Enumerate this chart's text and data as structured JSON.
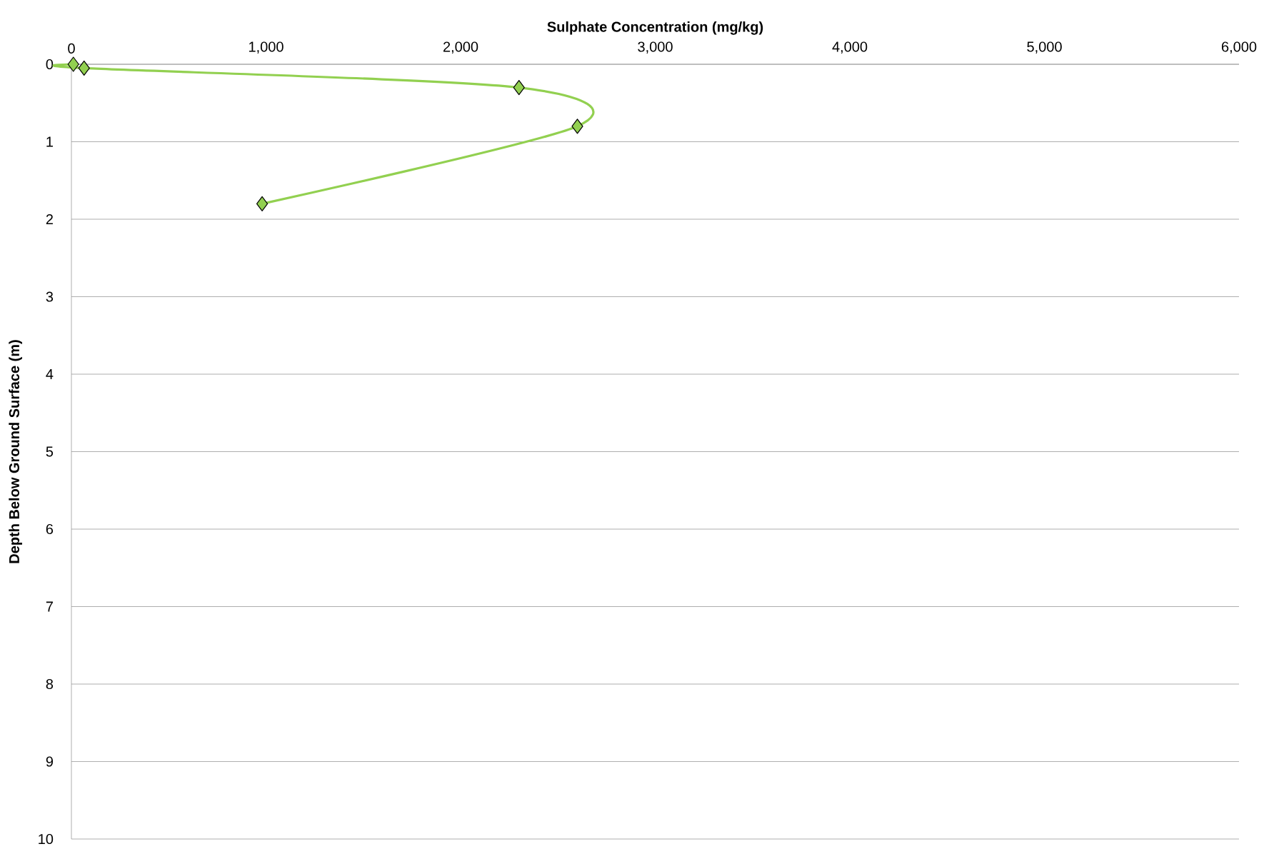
{
  "chart_data": {
    "type": "line",
    "xlabel": "Sulphate Concentration (mg/kg)",
    "ylabel": "Depth Below Ground Surface (m)",
    "series": [
      {
        "color": "#92d050",
        "x": [
          10,
          65,
          2300,
          2600,
          980
        ],
        "values": [
          0,
          0.05,
          0.3,
          0.8,
          1.8
        ]
      }
    ],
    "xlim": [
      0,
      6000
    ],
    "xticks": [
      {
        "value": 0,
        "label": "0"
      },
      {
        "value": 1000,
        "label": "1,000"
      },
      {
        "value": 2000,
        "label": "2,000"
      },
      {
        "value": 3000,
        "label": "3,000"
      },
      {
        "value": 4000,
        "label": "4,000"
      },
      {
        "value": 5000,
        "label": "5,000"
      },
      {
        "value": 6000,
        "label": "6,000"
      }
    ],
    "ylim": [
      10,
      0
    ],
    "yticks": [
      0,
      1,
      2,
      3,
      4,
      5,
      6,
      7,
      8,
      9,
      10
    ],
    "grid": "y",
    "marker": "diamond",
    "line_style": "solid"
  }
}
